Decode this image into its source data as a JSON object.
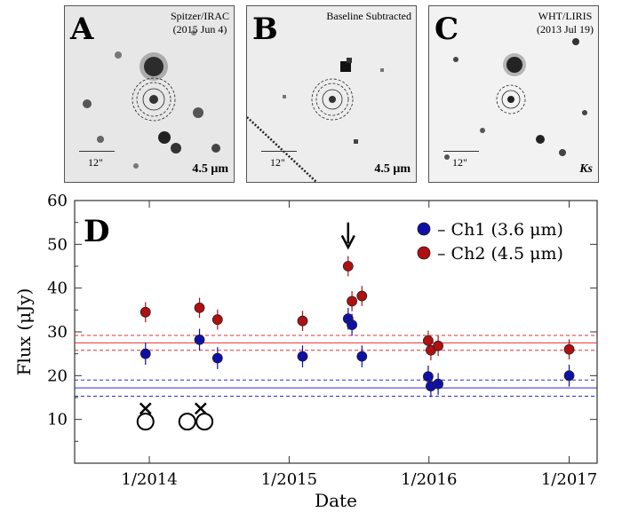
{
  "panels": [
    {
      "letter": "A",
      "caption_line1": "Spitzer/IRAC",
      "caption_line2": "(2015 Jun 4)",
      "wavelength": "4.5 μm",
      "scale": "12\""
    },
    {
      "letter": "B",
      "caption_line1": "Baseline Subtracted",
      "caption_line2": "",
      "wavelength": "4.5 μm",
      "scale": "12\""
    },
    {
      "letter": "C",
      "caption_line1": "WHT/LIRIS",
      "caption_line2": "(2013 Jul 19)",
      "wavelength": "Ks",
      "scale": "12\""
    }
  ],
  "chart_data": {
    "type": "scatter",
    "panel_label": "D",
    "xlabel": "Date",
    "ylabel": "Flux (μJy)",
    "ylim": [
      0,
      60
    ],
    "yticks": [
      10,
      20,
      30,
      40,
      50,
      60
    ],
    "xlim": [
      "2013-06-20",
      "2017-03-15"
    ],
    "xticks": [
      {
        "date": "2014-01-01",
        "label": "1/2014"
      },
      {
        "date": "2015-01-01",
        "label": "1/2015"
      },
      {
        "date": "2016-01-01",
        "label": "1/2016"
      },
      {
        "date": "2017-01-01",
        "label": "1/2017"
      }
    ],
    "series": [
      {
        "name": "– Ch1 (3.6 μm)",
        "color": "#1010a8",
        "x": [
          "2013-12-22",
          "2014-05-12",
          "2014-06-28",
          "2015-02-05",
          "2015-06-04",
          "2015-06-14",
          "2015-07-10",
          "2015-12-30",
          "2016-01-06",
          "2016-01-25",
          "2017-01-01"
        ],
        "y": [
          25.0,
          28.2,
          24.0,
          24.4,
          33.0,
          31.6,
          24.4,
          19.8,
          17.6,
          18.1,
          20.0
        ],
        "err": [
          2.5,
          2.5,
          2.5,
          2.5,
          2.5,
          2.5,
          2.5,
          2.5,
          2.5,
          2.5,
          2.5
        ]
      },
      {
        "name": "– Ch2 (4.5 μm)",
        "color": "#b01010",
        "x": [
          "2013-12-22",
          "2014-05-12",
          "2014-06-28",
          "2015-02-05",
          "2015-06-04",
          "2015-06-14",
          "2015-07-10",
          "2015-12-30",
          "2016-01-06",
          "2016-01-25",
          "2017-01-01"
        ],
        "y": [
          34.5,
          35.5,
          32.8,
          32.5,
          45.0,
          37.0,
          38.2,
          28.0,
          25.8,
          26.8,
          26.0
        ],
        "err": [
          2.3,
          2.3,
          2.3,
          2.3,
          2.3,
          2.3,
          2.3,
          2.3,
          2.3,
          2.3,
          2.3
        ]
      }
    ],
    "baselines": [
      {
        "series": "Ch1",
        "color": "#2b2bd6",
        "value": 17.2,
        "lower": 15.3,
        "upper": 19.0
      },
      {
        "series": "Ch2",
        "color": "#e23030",
        "value": 27.5,
        "lower": 25.8,
        "upper": 29.2
      }
    ],
    "legend_position": "top-right",
    "annotations": {
      "arrow_date": "2015-06-04",
      "crosses": [
        "2013-12-22",
        "2014-05-15"
      ],
      "circles": [
        "2013-12-22",
        "2014-04-10",
        "2014-05-25"
      ]
    }
  }
}
